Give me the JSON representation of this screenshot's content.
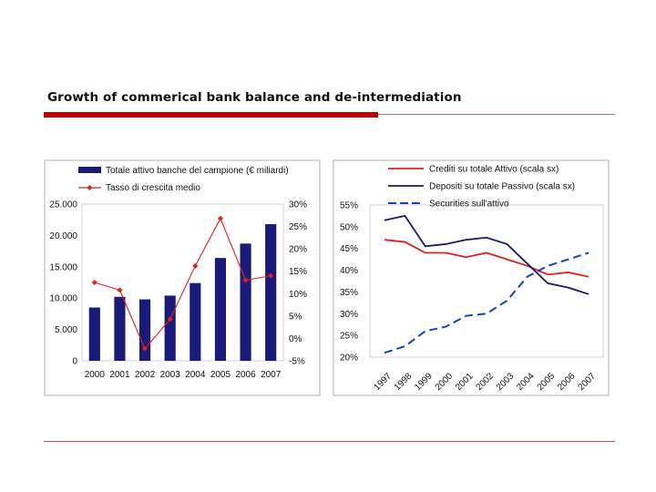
{
  "slide": {
    "title": "Growth of commerical bank balance and de-intermediation",
    "colors": {
      "accent_red": "#c00000",
      "rule_gray": "#9a9a9a"
    }
  },
  "chart_data": [
    {
      "type": "bar",
      "title": "",
      "categories": [
        "2000",
        "2001",
        "2002",
        "2003",
        "2004",
        "2005",
        "2006",
        "2007"
      ],
      "series": [
        {
          "name": "Totale attivo banche del campione (€ miliardi)",
          "kind": "bar",
          "axis": "left",
          "color": "#1a1a7a",
          "values": [
            8500,
            10200,
            9800,
            10400,
            12400,
            16400,
            18700,
            21800
          ]
        },
        {
          "name": "Tasso di crescita medio",
          "kind": "line",
          "axis": "right",
          "color": "#e0201a",
          "values": [
            12.5,
            10.8,
            -2.3,
            4.3,
            16.2,
            26.8,
            13.0,
            14.0
          ]
        }
      ],
      "y_left": {
        "min": 0,
        "max": 25000,
        "ticks": [
          "25.000",
          "20.000",
          "15.000",
          "10.000",
          "5.000",
          "0"
        ]
      },
      "y_right": {
        "min": -5,
        "max": 30,
        "ticks": [
          "30%",
          "25%",
          "20%",
          "15%",
          "10%",
          "5%",
          "0%",
          "-5%"
        ]
      },
      "grid": false,
      "legend": "top"
    },
    {
      "type": "line",
      "title": "",
      "categories": [
        "1997",
        "1998",
        "1999",
        "2000",
        "2001",
        "2002",
        "2003",
        "2004",
        "2005",
        "2006",
        "2007"
      ],
      "series": [
        {
          "name": "Crediti su totale Attivo (scala sx)",
          "color": "#e0201a",
          "dash": false,
          "values": [
            47.0,
            46.5,
            44.0,
            44.0,
            43.0,
            44.0,
            42.5,
            41.0,
            39.0,
            39.5,
            38.5
          ]
        },
        {
          "name": "Depositi su totale Passivo (scala sx)",
          "color": "#1a1a6e",
          "dash": false,
          "values": [
            51.5,
            52.5,
            45.5,
            46.0,
            47.0,
            47.5,
            46.0,
            41.5,
            37.0,
            36.0,
            34.5
          ]
        },
        {
          "name": "Securities sull'attivo",
          "color": "#1a3fc8",
          "dash": true,
          "values": [
            21.0,
            22.5,
            26.0,
            27.0,
            29.5,
            30.0,
            33.0,
            38.5,
            41.0,
            42.5,
            44.0
          ]
        }
      ],
      "y": {
        "min": 20,
        "max": 55,
        "ticks": [
          "55%",
          "50%",
          "45%",
          "40%",
          "35%",
          "30%",
          "25%",
          "20%"
        ]
      },
      "grid": false,
      "legend": "top"
    }
  ]
}
